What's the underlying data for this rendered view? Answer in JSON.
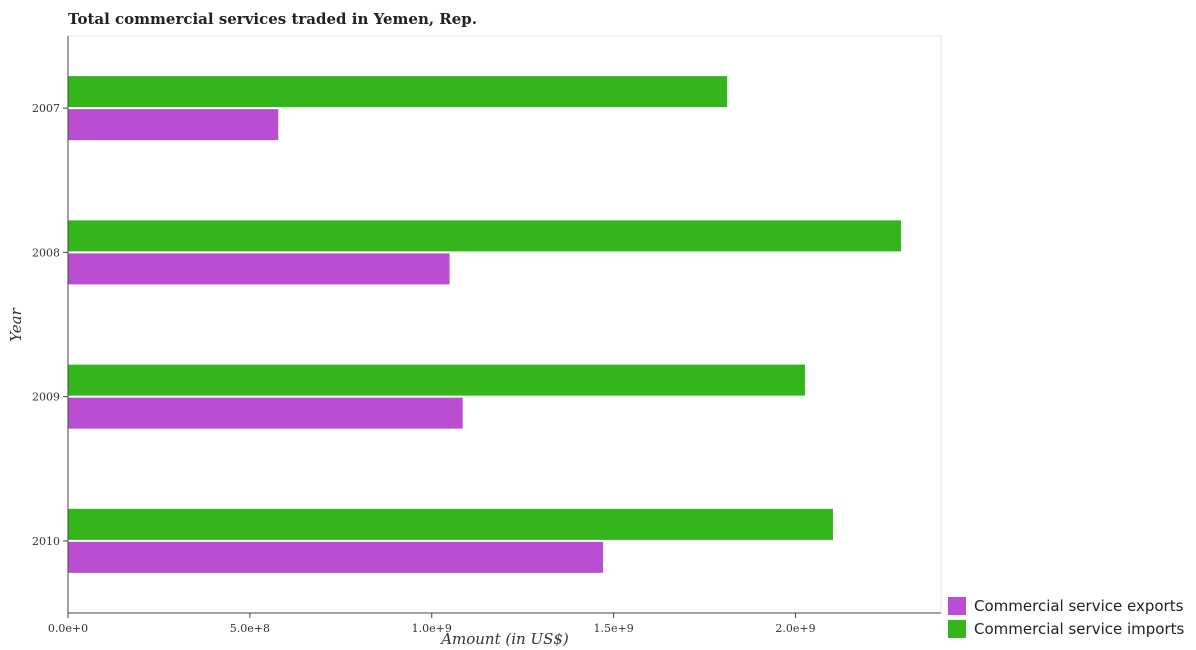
{
  "chart_data": {
    "type": "bar",
    "orientation": "horizontal",
    "title": "Total commercial services traded in Yemen, Rep.",
    "xlabel": "Amount (in US$)",
    "ylabel": "Year",
    "categories": [
      "2007",
      "2008",
      "2009",
      "2010"
    ],
    "series": [
      {
        "name": "Commercial service exports",
        "color": "#b94ed3",
        "values": [
          578000000,
          1049000000,
          1085000000,
          1471000000
        ]
      },
      {
        "name": "Commercial service imports",
        "color": "#33b51b",
        "values": [
          1812000000,
          2290000000,
          2026000000,
          2103000000
        ]
      }
    ],
    "xlim": [
      0,
      2400000000
    ],
    "xticks": [
      0,
      500000000,
      1000000000,
      1500000000,
      2000000000
    ],
    "xtick_labels": [
      "0.0e+0",
      "5.0e+8",
      "1.0e+9",
      "1.5e+9",
      "2.0e+9"
    ],
    "grid": false,
    "legend_position": "bottom-right"
  }
}
